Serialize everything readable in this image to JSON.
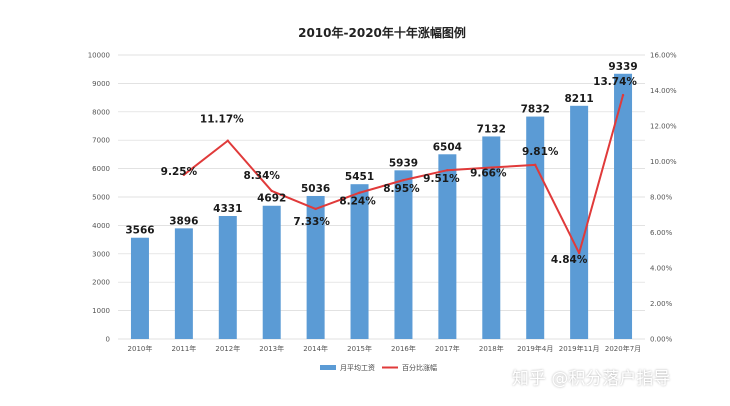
{
  "chart_data": {
    "type": "bar",
    "title": "2010年-2020年十年涨幅图例",
    "categories": [
      "2010年",
      "2011年",
      "2012年",
      "2013年",
      "2014年",
      "2015年",
      "2016年",
      "2017年",
      "2018年",
      "2019年4月",
      "2019年11月",
      "2020年7月"
    ],
    "series": [
      {
        "name": "月平均工资",
        "type": "bar",
        "axis": "left",
        "values": [
          3566,
          3896,
          4331,
          4692,
          5036,
          5451,
          5939,
          6504,
          7132,
          7832,
          8211,
          9339
        ],
        "labels": [
          "3566",
          "3896",
          "4331",
          "4692",
          "5036",
          "5451",
          "5939",
          "6504",
          "7132",
          "7832",
          "8211",
          "9339"
        ],
        "color": "#5b9bd5"
      },
      {
        "name": "百分比涨幅",
        "type": "line",
        "axis": "right",
        "values": [
          null,
          9.25,
          11.17,
          8.34,
          7.33,
          8.24,
          8.95,
          9.51,
          9.66,
          9.81,
          4.84,
          13.74
        ],
        "labels": [
          "",
          "9.25%",
          "11.17%",
          "8.34%",
          "7.33%",
          "8.24%",
          "8.95%",
          "9.51%",
          "9.66%",
          "9.81%",
          "4.84%",
          "13.74%"
        ],
        "color": "#e03a3a"
      }
    ],
    "ylim_left": [
      0,
      10000
    ],
    "yticks_left": [
      "0",
      "1000",
      "2000",
      "3000",
      "4000",
      "5000",
      "6000",
      "7000",
      "8000",
      "9000",
      "10000"
    ],
    "ylim_right": [
      0,
      16
    ],
    "yticks_right": [
      "0.00%",
      "2.00%",
      "4.00%",
      "6.00%",
      "8.00%",
      "10.00%",
      "12.00%",
      "14.00%",
      "16.00%"
    ],
    "grid": true,
    "legend_position": "bottom"
  },
  "watermark": "知乎 @积分落户指导"
}
